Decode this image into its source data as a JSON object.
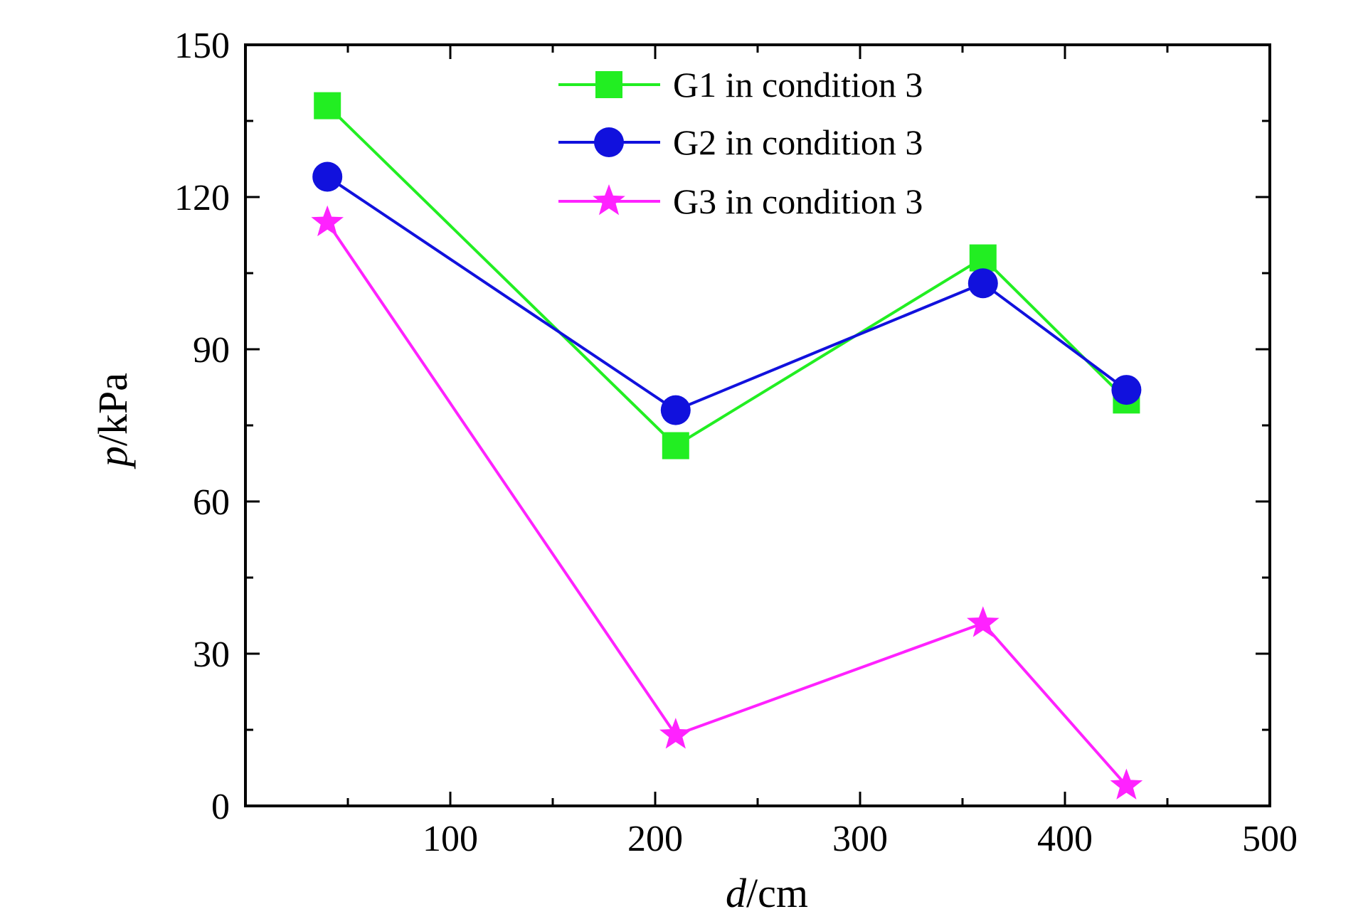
{
  "chart_data": {
    "type": "line",
    "xlabel_italic": "d",
    "xlabel_unit": "/cm",
    "ylabel_italic": "p",
    "ylabel_unit": "/kPa",
    "xlim": [
      0,
      500
    ],
    "ylim": [
      0,
      150
    ],
    "xticks": [
      100,
      200,
      300,
      400,
      500
    ],
    "yticks": [
      0,
      30,
      60,
      90,
      120,
      150
    ],
    "grid": false,
    "legend_position": "top-center",
    "series": [
      {
        "name": "G1 in condition 3",
        "color": "#22ee22",
        "marker": "square",
        "x": [
          40,
          210,
          360,
          430
        ],
        "y": [
          138,
          71,
          108,
          80
        ]
      },
      {
        "name": "G2 in condition 3",
        "color": "#1111dd",
        "marker": "circle",
        "x": [
          40,
          210,
          360,
          430
        ],
        "y": [
          124,
          78,
          103,
          82
        ]
      },
      {
        "name": "G3 in condition 3",
        "color": "#ff22ff",
        "marker": "star",
        "x": [
          40,
          210,
          360,
          430
        ],
        "y": [
          115,
          14,
          36,
          4
        ]
      }
    ]
  }
}
